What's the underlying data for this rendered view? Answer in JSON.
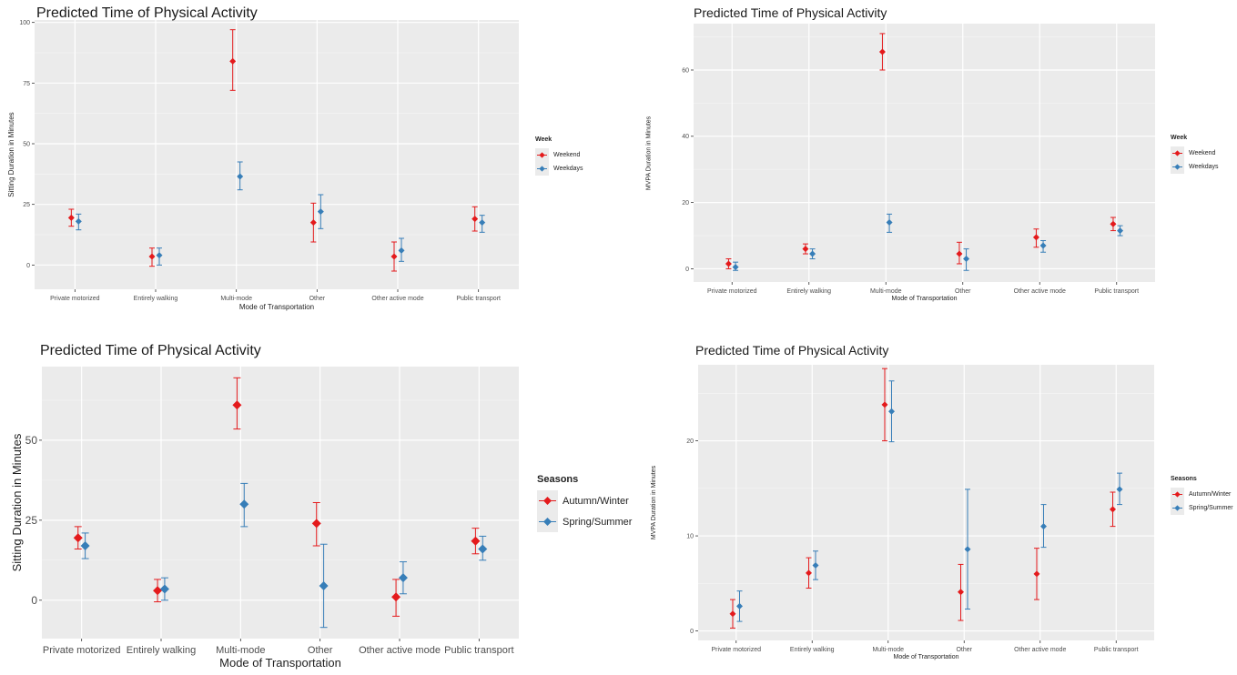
{
  "chart_data": [
    {
      "type": "scatter",
      "title": "Predicted Time of Physical Activity",
      "xlabel": "Mode of Transportation",
      "ylabel": "Sitting Duration in Minutes",
      "categories": [
        "Private motorized",
        "Entirely walking",
        "Multi-mode",
        "Other",
        "Other active mode",
        "Public transport"
      ],
      "ylim": [
        -10,
        101
      ],
      "yticks": [
        0,
        25,
        50,
        75,
        100
      ],
      "legend_title": "Week",
      "legend_position": "right",
      "grid": true,
      "series": [
        {
          "name": "Weekend",
          "color": "#e41a1c",
          "values": [
            19.5,
            3.5,
            84,
            17.5,
            3.5,
            19
          ],
          "lower": [
            16,
            -0.5,
            72,
            9.5,
            -2.5,
            14
          ],
          "upper": [
            23,
            7,
            97,
            25.5,
            9.5,
            24
          ]
        },
        {
          "name": "Weekdays",
          "color": "#377eb8",
          "values": [
            18,
            4,
            36.5,
            22,
            6,
            17.5
          ],
          "lower": [
            14.5,
            0,
            31,
            15,
            1.5,
            13.5
          ],
          "upper": [
            21,
            7,
            42.5,
            29,
            11,
            20.5
          ]
        }
      ]
    },
    {
      "type": "scatter",
      "title": "Predicted Time of Physical Activity",
      "xlabel": "Mode of Transportation",
      "ylabel": "MVPA Duration in Minutes",
      "categories": [
        "Private motorized",
        "Entirely walking",
        "Multi-mode",
        "Other",
        "Other active mode",
        "Public transport"
      ],
      "ylim": [
        -4,
        74
      ],
      "yticks": [
        0,
        20,
        40,
        60
      ],
      "legend_title": "Week",
      "legend_position": "right",
      "grid": true,
      "series": [
        {
          "name": "Weekend",
          "color": "#e41a1c",
          "values": [
            1.5,
            6,
            65.5,
            4.5,
            9.5,
            13.5
          ],
          "lower": [
            0,
            4.5,
            60,
            1.5,
            6.5,
            11.5
          ],
          "upper": [
            3,
            7.5,
            71,
            8,
            12,
            15.5
          ]
        },
        {
          "name": "Weekdays",
          "color": "#377eb8",
          "values": [
            0.5,
            4.5,
            14,
            3,
            7,
            11.5
          ],
          "lower": [
            -0.5,
            3,
            11,
            -0.5,
            5,
            10
          ],
          "upper": [
            2,
            6,
            16.5,
            6,
            8.5,
            13
          ]
        }
      ]
    },
    {
      "type": "scatter",
      "title": "Predicted Time of Physical Activity",
      "xlabel": "Mode of Transportation",
      "ylabel": "Sitting Duration in Minutes",
      "categories": [
        "Private motorized",
        "Entirely walking",
        "Multi-mode",
        "Other",
        "Other active mode",
        "Public transport"
      ],
      "ylim": [
        -12,
        73
      ],
      "yticks": [
        0,
        25,
        50
      ],
      "legend_title": "Seasons",
      "legend_position": "right",
      "grid": true,
      "series": [
        {
          "name": "Autumn/Winter",
          "color": "#e41a1c",
          "values": [
            19.5,
            3,
            61,
            24,
            1,
            18.5
          ],
          "lower": [
            16,
            -0.5,
            53.5,
            17,
            -5,
            14.5
          ],
          "upper": [
            23,
            6.5,
            69.5,
            30.5,
            6.5,
            22.5
          ]
        },
        {
          "name": "Spring/Summer",
          "color": "#377eb8",
          "values": [
            17,
            3.5,
            30,
            4.5,
            7,
            16
          ],
          "lower": [
            13,
            0,
            23,
            -8.5,
            2,
            12.5
          ],
          "upper": [
            21,
            7,
            36.5,
            17.5,
            12,
            20
          ]
        }
      ]
    },
    {
      "type": "scatter",
      "title": "Predicted Time of Physical Activity",
      "xlabel": "Mode of Transportation",
      "ylabel": "MVPA Duration in Minutes",
      "categories": [
        "Private motorized",
        "Entirely walking",
        "Multi-mode",
        "Other",
        "Other active mode",
        "Public transport"
      ],
      "ylim": [
        -1,
        28
      ],
      "yticks": [
        0,
        10,
        20
      ],
      "legend_title": "Seasons",
      "legend_position": "right",
      "grid": true,
      "series": [
        {
          "name": "Autumn/Winter",
          "color": "#e41a1c",
          "values": [
            1.8,
            6.1,
            23.8,
            4.1,
            6,
            12.8
          ],
          "lower": [
            0.3,
            4.5,
            20,
            1.1,
            3.3,
            11
          ],
          "upper": [
            3.3,
            7.7,
            27.6,
            7,
            8.7,
            14.6
          ]
        },
        {
          "name": "Spring/Summer",
          "color": "#377eb8",
          "values": [
            2.6,
            6.9,
            23.1,
            8.6,
            11,
            14.9
          ],
          "lower": [
            1,
            5.4,
            19.9,
            2.3,
            8.8,
            13.3
          ],
          "upper": [
            4.2,
            8.4,
            26.3,
            14.9,
            13.3,
            16.6
          ]
        }
      ]
    }
  ]
}
